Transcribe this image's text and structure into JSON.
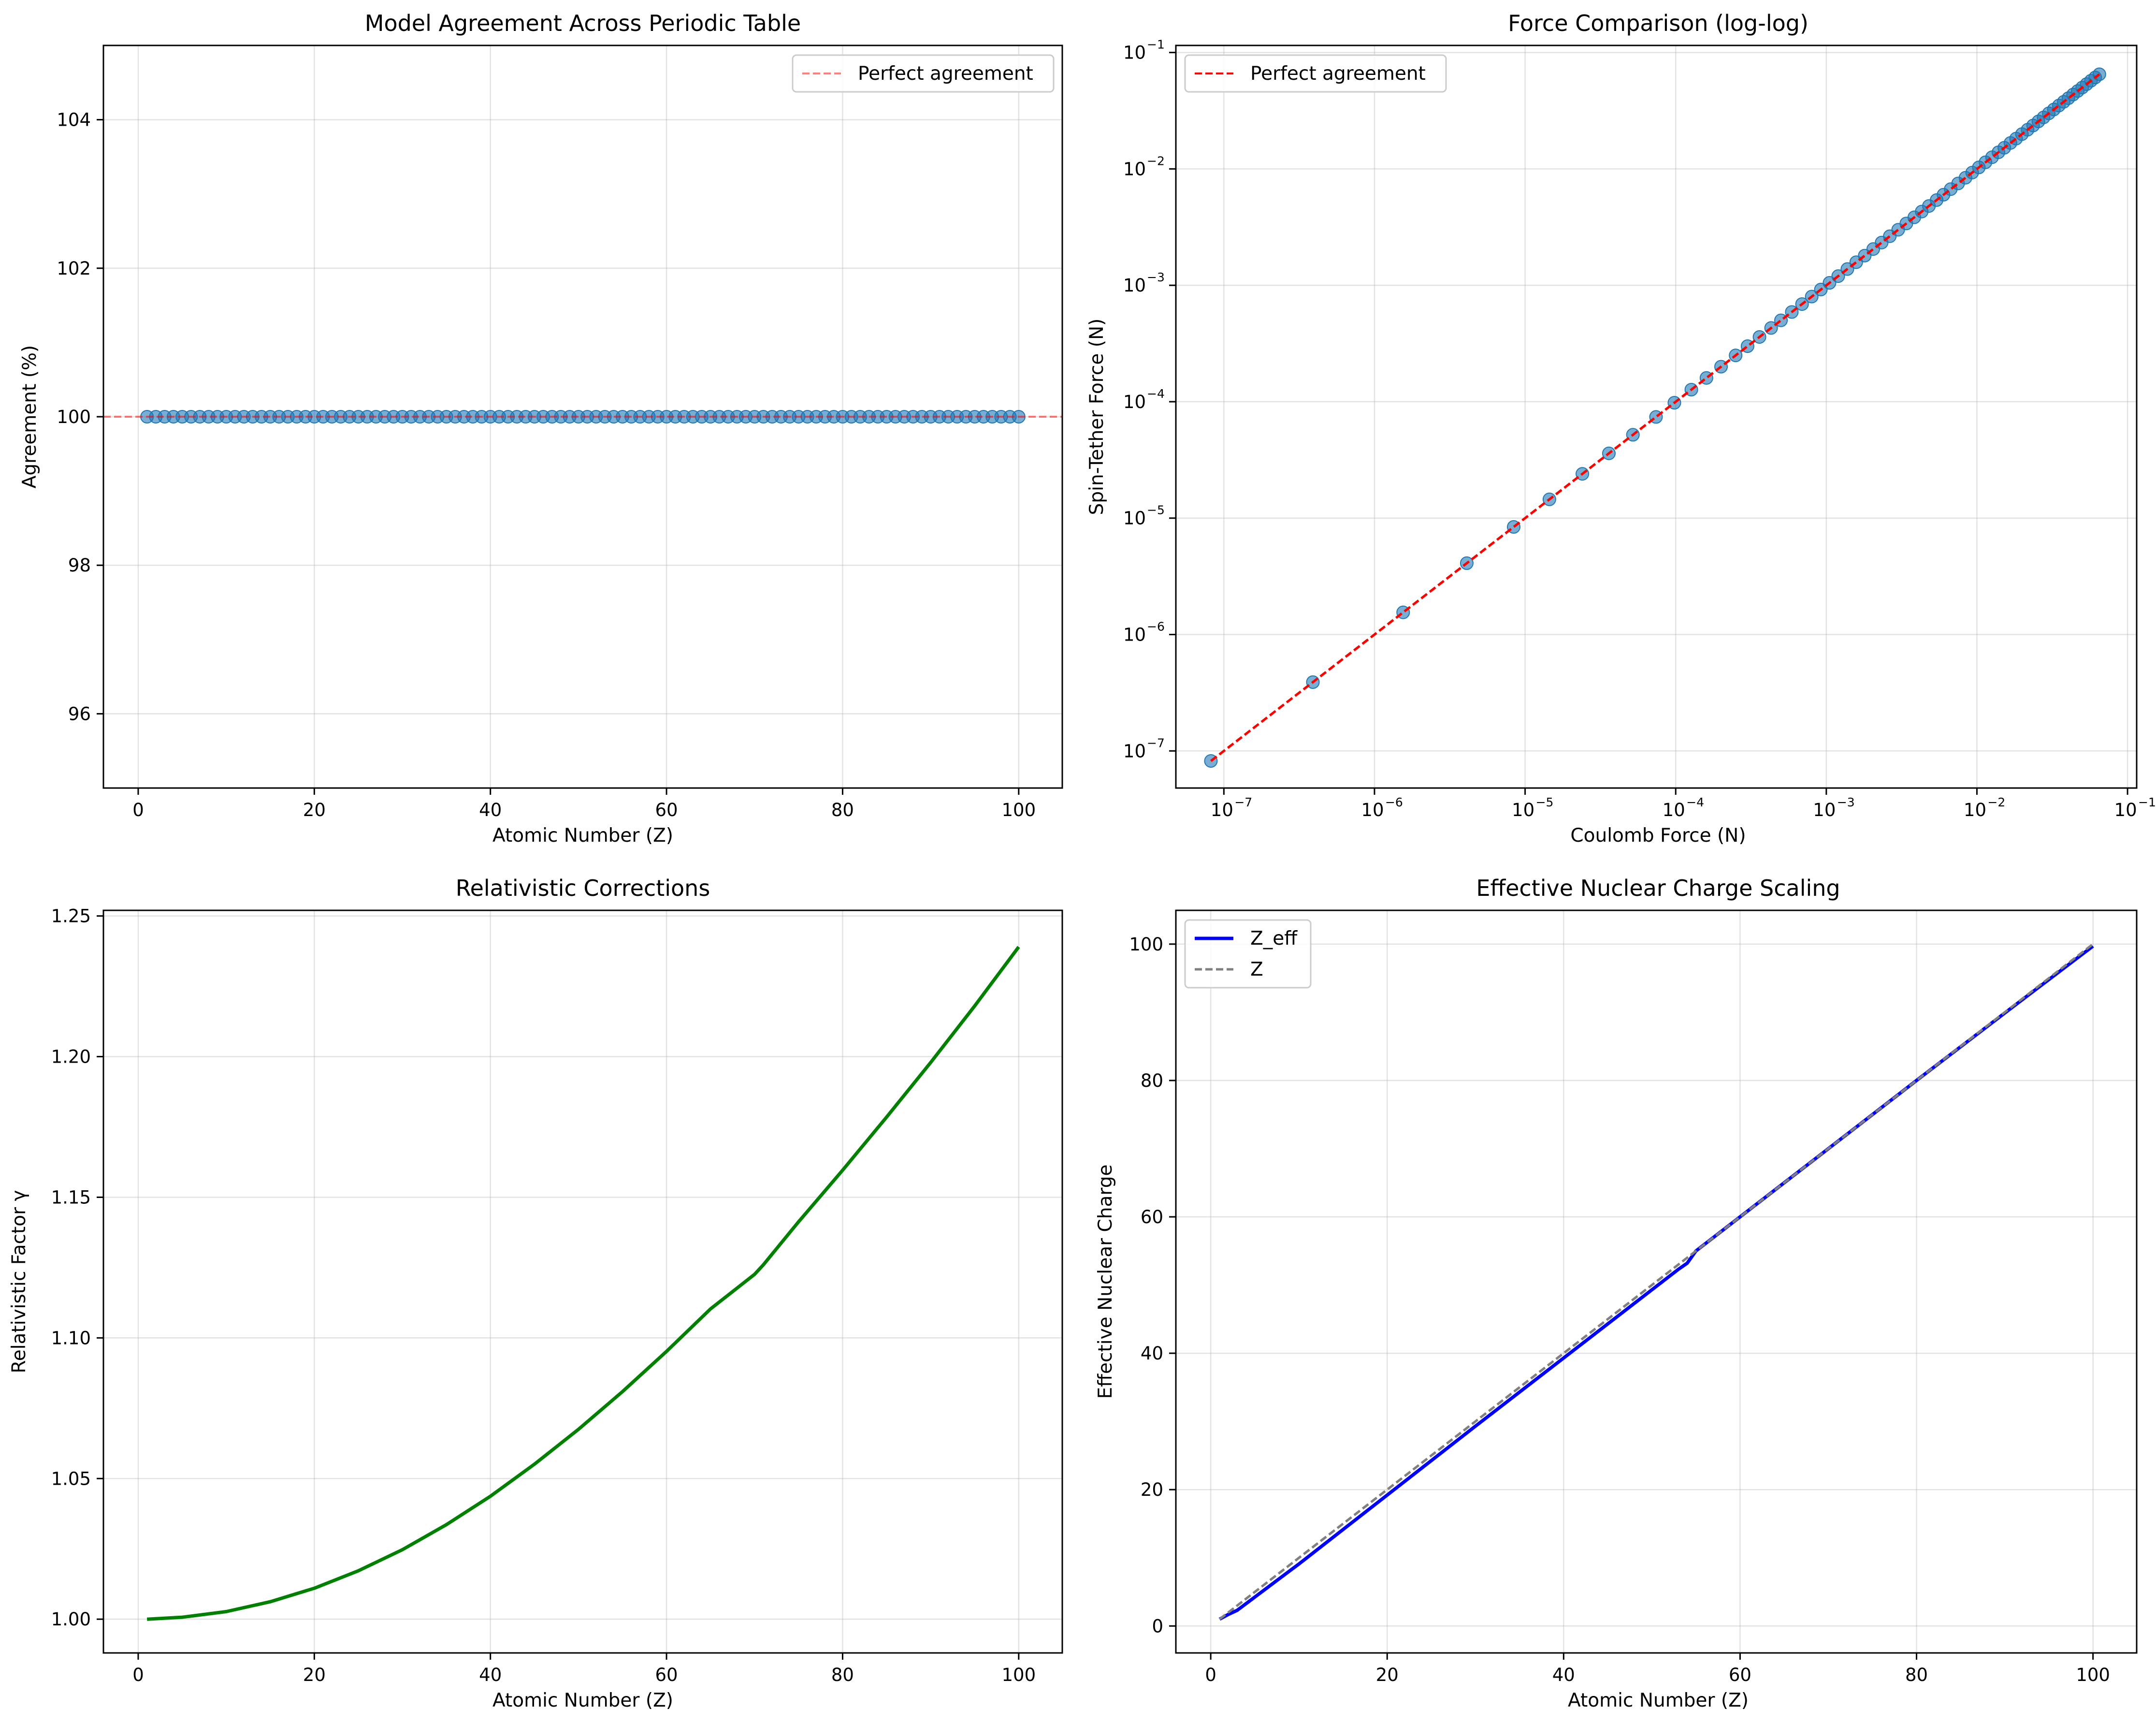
{
  "figure": {
    "background": "#ffffff"
  },
  "chart_data": [
    {
      "type": "scatter",
      "title": "Model Agreement Across Periodic Table",
      "xlabel": "Atomic Number (Z)",
      "ylabel": "Agreement (%)",
      "xlim": [
        -3.95,
        104.95
      ],
      "ylim": [
        95,
        105
      ],
      "xticks": [
        "0",
        "20",
        "40",
        "60",
        "80",
        "100"
      ],
      "yticks": [
        "96",
        "98",
        "100",
        "102",
        "104"
      ],
      "grid": true,
      "legend": {
        "position": "top-right",
        "entries": [
          "Perfect agreement"
        ]
      },
      "series": [
        {
          "kind": "points",
          "x_start": 1,
          "x_end": 100,
          "y": 100,
          "color": "#1f77b4"
        },
        {
          "kind": "hline",
          "name": "Perfect agreement",
          "y": 100,
          "color": "#ff0000",
          "alpha": 0.5,
          "dash": "dashed"
        }
      ]
    },
    {
      "type": "scatter",
      "title": "Force Comparison (log-log)",
      "xlabel": "Coulomb Force (N)",
      "ylabel": "Spin-Tether Force (N)",
      "xscale": "log",
      "yscale": "log",
      "xlim": [
        4.8e-08,
        0.115
      ],
      "ylim": [
        4.8e-08,
        0.115
      ],
      "xtick_exponents": [
        -7,
        -6,
        -5,
        -4,
        -3,
        -2,
        -1
      ],
      "ytick_exponents": [
        -7,
        -6,
        -5,
        -4,
        -3,
        -2,
        -1
      ],
      "grid": true,
      "legend": {
        "position": "top-left",
        "entries": [
          "Perfect agreement"
        ]
      },
      "series": [
        {
          "kind": "points",
          "name": "points",
          "color": "#1f77b4",
          "x": [
            8.2e-08,
            3.9e-07,
            1.55e-06,
            4.1e-06,
            8.4e-06,
            1.45e-05,
            2.4e-05,
            3.6e-05,
            5.2e-05,
            7.4e-05,
            9.8e-05,
            0.000127,
            0.00016,
            0.0002,
            0.00025,
            0.0003,
            0.00036,
            0.00043,
            0.0005,
            0.00059,
            0.00069,
            0.0008,
            0.00092,
            0.00105,
            0.0012,
            0.00138,
            0.00158,
            0.0018,
            0.00205,
            0.00233,
            0.00264,
            0.003,
            0.0034,
            0.00384,
            0.0043,
            0.0048,
            0.0054,
            0.006,
            0.0067,
            0.0075,
            0.0084,
            0.0093,
            0.0103,
            0.0114,
            0.0126,
            0.0139,
            0.0152,
            0.0167,
            0.0182,
            0.0199,
            0.0217,
            0.0236,
            0.0256,
            0.0277,
            0.03,
            0.0324,
            0.035,
            0.0377,
            0.0405,
            0.0435,
            0.0467,
            0.05,
            0.0535,
            0.0572,
            0.061,
            0.065
          ],
          "y": [
            8.2e-08,
            3.9e-07,
            1.55e-06,
            4.1e-06,
            8.4e-06,
            1.45e-05,
            2.4e-05,
            3.6e-05,
            5.2e-05,
            7.4e-05,
            9.8e-05,
            0.000127,
            0.00016,
            0.0002,
            0.00025,
            0.0003,
            0.00036,
            0.00043,
            0.0005,
            0.00059,
            0.00069,
            0.0008,
            0.00092,
            0.00105,
            0.0012,
            0.00138,
            0.00158,
            0.0018,
            0.00205,
            0.00233,
            0.00264,
            0.003,
            0.0034,
            0.00384,
            0.0043,
            0.0048,
            0.0054,
            0.006,
            0.0067,
            0.0075,
            0.0084,
            0.0093,
            0.0103,
            0.0114,
            0.0126,
            0.0139,
            0.0152,
            0.0167,
            0.0182,
            0.0199,
            0.0217,
            0.0236,
            0.0256,
            0.0277,
            0.03,
            0.0324,
            0.035,
            0.0377,
            0.0405,
            0.0435,
            0.0467,
            0.05,
            0.0535,
            0.0572,
            0.061,
            0.065
          ]
        },
        {
          "kind": "line",
          "name": "Perfect agreement",
          "x": [
            8.2e-08,
            0.065
          ],
          "y": [
            8.2e-08,
            0.065
          ],
          "color": "#ff0000",
          "dash": "dashed"
        }
      ]
    },
    {
      "type": "line",
      "title": "Relativistic Corrections",
      "xlabel": "Atomic Number (Z)",
      "ylabel": "Relativistic Factor γ",
      "xlim": [
        -3.95,
        104.95
      ],
      "ylim": [
        0.988,
        1.252
      ],
      "xticks": [
        "0",
        "20",
        "40",
        "60",
        "80",
        "100"
      ],
      "yticks": [
        "1.00",
        "1.05",
        "1.10",
        "1.15",
        "1.20",
        "1.25"
      ],
      "grid": true,
      "series": [
        {
          "color": "#008000",
          "x": [
            1,
            5,
            10,
            15,
            20,
            25,
            30,
            35,
            40,
            45,
            50,
            55,
            60,
            65,
            70,
            71,
            75,
            80,
            85,
            90,
            95,
            100
          ],
          "y": [
            1.0,
            1.0007,
            1.0027,
            1.0062,
            1.011,
            1.0172,
            1.0247,
            1.0336,
            1.0437,
            1.0551,
            1.0675,
            1.0809,
            1.0952,
            1.1103,
            1.1226,
            1.126,
            1.1413,
            1.1596,
            1.1785,
            1.1979,
            1.218,
            1.239
          ]
        }
      ]
    },
    {
      "type": "line",
      "title": "Effective Nuclear Charge Scaling",
      "xlabel": "Atomic Number (Z)",
      "ylabel": "Effective Nuclear Charge",
      "xlim": [
        -3.95,
        104.95
      ],
      "ylim": [
        -3.95,
        104.95
      ],
      "xticks": [
        "0",
        "20",
        "40",
        "60",
        "80",
        "100"
      ],
      "yticks": [
        "0",
        "20",
        "40",
        "60",
        "80",
        "100"
      ],
      "grid": true,
      "legend": {
        "position": "top-left",
        "entries": [
          "Z_eff",
          "Z"
        ]
      },
      "series": [
        {
          "name": "Z_eff",
          "color": "#0000ff",
          "x": [
            1,
            2,
            3,
            10,
            20,
            30,
            40,
            50,
            53,
            54,
            55,
            60,
            70,
            80,
            90,
            100
          ],
          "y": [
            1.0,
            1.7,
            2.3,
            9.1,
            19.2,
            29.3,
            39.3,
            49.3,
            52.3,
            53.2,
            55.0,
            60.0,
            70.0,
            80.0,
            89.9,
            99.7
          ]
        },
        {
          "name": "Z",
          "color": "#808080",
          "dash": "dashed",
          "x": [
            1,
            100
          ],
          "y": [
            1,
            100
          ]
        }
      ]
    }
  ]
}
